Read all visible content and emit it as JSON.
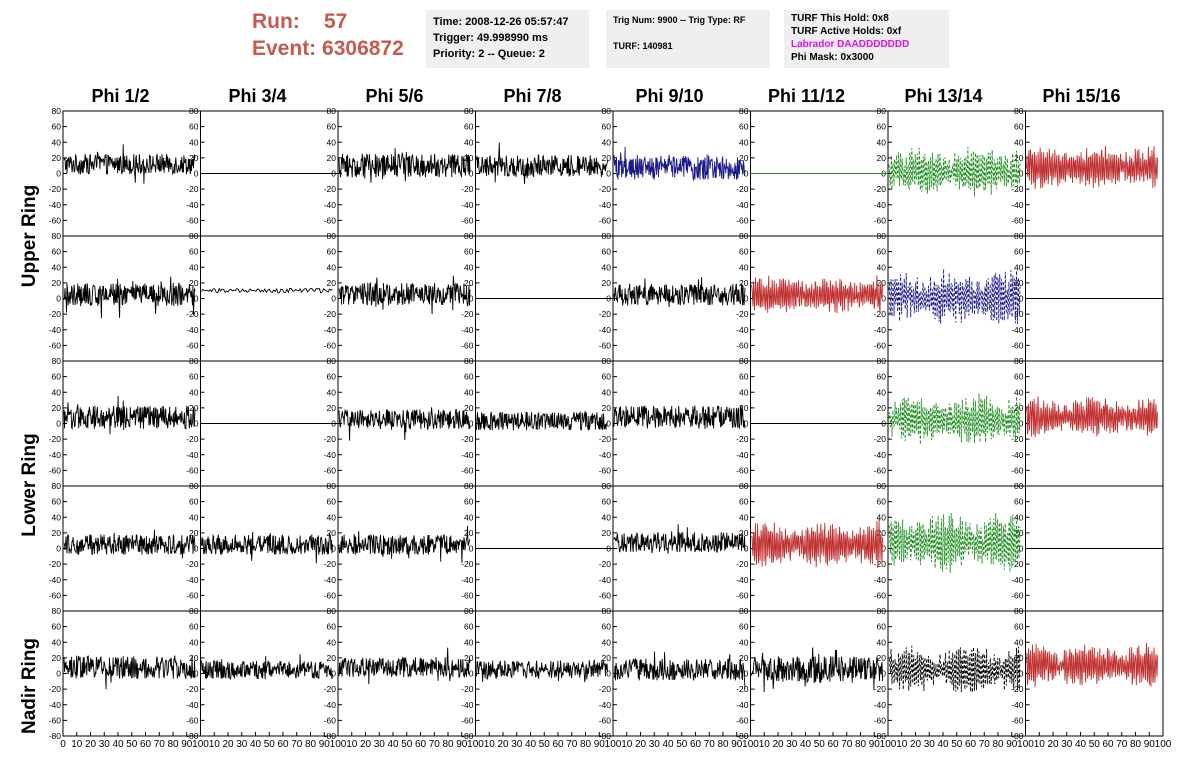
{
  "header": {
    "run_label": "Run:",
    "run_value": "57",
    "event_label": "Event:",
    "event_value": "6306872",
    "box1": [
      "Time: 2008-12-26 05:57:47",
      "Trigger: 49.998990 ms",
      "Priority: 2 -- Queue: 2"
    ],
    "box2": [
      "Trig Num: 9900 -- Trig Type: RF",
      "",
      "TURF: 140981"
    ],
    "box3": [
      "TURF This Hold: 0x8",
      "TURF Active Holds: 0xf",
      "Labrador DAADDDDDDD",
      "Phi Mask: 0x3000"
    ]
  },
  "chart_data": {
    "type": "line",
    "columns": [
      "Phi 1/2",
      "Phi 3/4",
      "Phi 5/6",
      "Phi 7/8",
      "Phi 9/10",
      "Phi 11/12",
      "Phi 13/14",
      "Phi 15/16"
    ],
    "ring_labels": [
      "Upper Ring",
      "Lower Ring",
      "Nadir Ring"
    ],
    "rows": 5,
    "xlim": [
      0,
      100
    ],
    "ylim": [
      -80,
      80
    ],
    "y_ticks": [
      -80,
      -60,
      -40,
      -20,
      0,
      20,
      40,
      60,
      80
    ],
    "y_tick_labels": [
      "",
      "-60",
      "-40",
      "-20",
      "0",
      "20",
      "40",
      "60",
      "80"
    ],
    "y_tick_labels_bottom_row": [
      "-80",
      "-60",
      "-40",
      "-20",
      "0",
      "20",
      "40",
      "60",
      "80"
    ],
    "x_ticks": [
      0,
      10,
      20,
      30,
      40,
      50,
      60,
      70,
      80,
      90,
      100
    ],
    "x_tick_labels_first": [
      "0",
      "10",
      "20",
      "30",
      "40",
      "50",
      "60",
      "70",
      "80",
      "90",
      "100"
    ],
    "x_tick_labels_other": [
      "10",
      "20",
      "30",
      "40",
      "50",
      "60",
      "70",
      "80",
      "90",
      "100"
    ],
    "colors": {
      "black": "#000000",
      "blue": "#1a1a8c",
      "red": "#c03030",
      "green": "#1f8f1f"
    },
    "panels": [
      {
        "row": 0,
        "col": 0,
        "color": "black",
        "style": "solid",
        "kind": "noise",
        "offset": 12,
        "amplitude": 13
      },
      {
        "row": 0,
        "col": 1,
        "color": "black",
        "style": "solid",
        "kind": "flat",
        "offset": 0,
        "amplitude": 0
      },
      {
        "row": 0,
        "col": 2,
        "color": "black",
        "style": "solid",
        "kind": "noise",
        "offset": 10,
        "amplitude": 15
      },
      {
        "row": 0,
        "col": 3,
        "color": "black",
        "style": "solid",
        "kind": "noise",
        "offset": 10,
        "amplitude": 14
      },
      {
        "row": 0,
        "col": 4,
        "color": "blue",
        "style": "solid",
        "kind": "noise",
        "offset": 8,
        "amplitude": 16
      },
      {
        "row": 0,
        "col": 5,
        "color": "green",
        "style": "solid",
        "kind": "flat",
        "offset": 0,
        "amplitude": 0
      },
      {
        "row": 0,
        "col": 6,
        "color": "green",
        "style": "dashed",
        "kind": "osc",
        "offset": 2,
        "amplitude": 26
      },
      {
        "row": 0,
        "col": 7,
        "color": "red",
        "style": "solid",
        "kind": "osc",
        "offset": 8,
        "amplitude": 22
      },
      {
        "row": 1,
        "col": 0,
        "color": "black",
        "style": "solid",
        "kind": "noise",
        "offset": 5,
        "amplitude": 15
      },
      {
        "row": 1,
        "col": 1,
        "color": "black",
        "style": "solid",
        "kind": "smooth",
        "offset": 10,
        "amplitude": 3
      },
      {
        "row": 1,
        "col": 2,
        "color": "black",
        "style": "solid",
        "kind": "noise",
        "offset": 5,
        "amplitude": 15
      },
      {
        "row": 1,
        "col": 3,
        "color": "black",
        "style": "solid",
        "kind": "flat",
        "offset": 0,
        "amplitude": 0
      },
      {
        "row": 1,
        "col": 4,
        "color": "black",
        "style": "solid",
        "kind": "noise",
        "offset": 5,
        "amplitude": 14
      },
      {
        "row": 1,
        "col": 5,
        "color": "red",
        "style": "solid",
        "kind": "osc",
        "offset": 5,
        "amplitude": 20
      },
      {
        "row": 1,
        "col": 6,
        "color": "blue",
        "style": "dashed",
        "kind": "osc",
        "offset": 2,
        "amplitude": 28
      },
      {
        "row": 1,
        "col": 7,
        "color": "black",
        "style": "solid",
        "kind": "flat",
        "offset": 0,
        "amplitude": 0
      },
      {
        "row": 2,
        "col": 0,
        "color": "black",
        "style": "solid",
        "kind": "noise",
        "offset": 8,
        "amplitude": 15
      },
      {
        "row": 2,
        "col": 1,
        "color": "black",
        "style": "solid",
        "kind": "flat",
        "offset": 0,
        "amplitude": 0
      },
      {
        "row": 2,
        "col": 2,
        "color": "black",
        "style": "solid",
        "kind": "noise",
        "offset": 5,
        "amplitude": 13
      },
      {
        "row": 2,
        "col": 3,
        "color": "black",
        "style": "solid",
        "kind": "noise",
        "offset": 3,
        "amplitude": 12
      },
      {
        "row": 2,
        "col": 4,
        "color": "black",
        "style": "solid",
        "kind": "noise",
        "offset": 8,
        "amplitude": 15
      },
      {
        "row": 2,
        "col": 5,
        "color": "black",
        "style": "solid",
        "kind": "flat",
        "offset": 0,
        "amplitude": 0
      },
      {
        "row": 2,
        "col": 6,
        "color": "green",
        "style": "dashed",
        "kind": "osc",
        "offset": 5,
        "amplitude": 26
      },
      {
        "row": 2,
        "col": 7,
        "color": "red",
        "style": "solid",
        "kind": "osc",
        "offset": 8,
        "amplitude": 20
      },
      {
        "row": 3,
        "col": 0,
        "color": "black",
        "style": "solid",
        "kind": "noise",
        "offset": 5,
        "amplitude": 13
      },
      {
        "row": 3,
        "col": 1,
        "color": "black",
        "style": "solid",
        "kind": "noise",
        "offset": 5,
        "amplitude": 13
      },
      {
        "row": 3,
        "col": 2,
        "color": "black",
        "style": "solid",
        "kind": "noise",
        "offset": 5,
        "amplitude": 13
      },
      {
        "row": 3,
        "col": 3,
        "color": "black",
        "style": "solid",
        "kind": "flat",
        "offset": 0,
        "amplitude": 0
      },
      {
        "row": 3,
        "col": 4,
        "color": "black",
        "style": "solid",
        "kind": "noise",
        "offset": 8,
        "amplitude": 13
      },
      {
        "row": 3,
        "col": 5,
        "color": "red",
        "style": "solid",
        "kind": "osc",
        "offset": 5,
        "amplitude": 24
      },
      {
        "row": 3,
        "col": 6,
        "color": "green",
        "style": "dashed",
        "kind": "osc",
        "offset": 8,
        "amplitude": 30
      },
      {
        "row": 3,
        "col": 7,
        "color": "black",
        "style": "solid",
        "kind": "flat",
        "offset": 0,
        "amplitude": 0
      },
      {
        "row": 4,
        "col": 0,
        "color": "black",
        "style": "solid",
        "kind": "noise",
        "offset": 8,
        "amplitude": 15
      },
      {
        "row": 4,
        "col": 1,
        "color": "black",
        "style": "solid",
        "kind": "noise",
        "offset": 5,
        "amplitude": 12
      },
      {
        "row": 4,
        "col": 2,
        "color": "black",
        "style": "solid",
        "kind": "noise",
        "offset": 8,
        "amplitude": 13
      },
      {
        "row": 4,
        "col": 3,
        "color": "black",
        "style": "solid",
        "kind": "noise",
        "offset": 5,
        "amplitude": 12
      },
      {
        "row": 4,
        "col": 4,
        "color": "black",
        "style": "solid",
        "kind": "noise",
        "offset": 5,
        "amplitude": 14
      },
      {
        "row": 4,
        "col": 5,
        "color": "black",
        "style": "solid",
        "kind": "noise",
        "offset": 5,
        "amplitude": 17
      },
      {
        "row": 4,
        "col": 6,
        "color": "black",
        "style": "dashed",
        "kind": "osc",
        "offset": 5,
        "amplitude": 26
      },
      {
        "row": 4,
        "col": 7,
        "color": "red",
        "style": "solid",
        "kind": "osc",
        "offset": 10,
        "amplitude": 22
      }
    ]
  }
}
